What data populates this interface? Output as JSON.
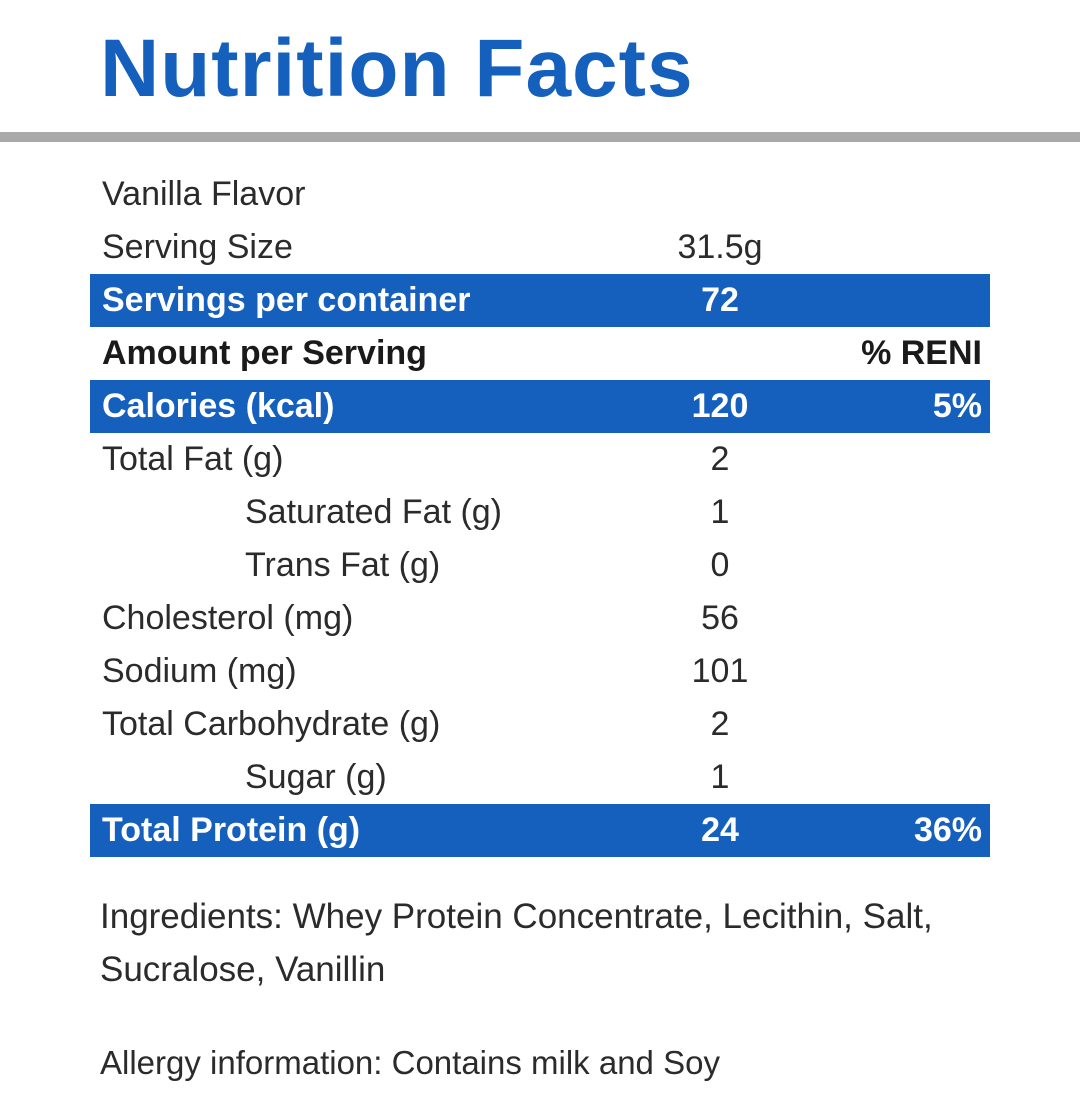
{
  "title": "Nutrition Facts",
  "colors": {
    "accent": "#1560BD",
    "divider": "#A9A9A9",
    "text": "#2B2B2B"
  },
  "rows": [
    {
      "label": "Vanilla Flavor",
      "value": "",
      "pct": ""
    },
    {
      "label": "Serving Size",
      "value": "31.5g",
      "pct": ""
    },
    {
      "label": "Servings per container",
      "value": "72",
      "pct": ""
    },
    {
      "label": "Amount per Serving",
      "value": "",
      "pct": "% RENI"
    },
    {
      "label": "Calories (kcal)",
      "value": "120",
      "pct": "5%"
    },
    {
      "label": "Total Fat (g)",
      "value": "2",
      "pct": ""
    },
    {
      "label": "Saturated Fat (g)",
      "value": "1",
      "pct": ""
    },
    {
      "label": "Trans Fat (g)",
      "value": "0",
      "pct": ""
    },
    {
      "label": "Cholesterol (mg)",
      "value": "56",
      "pct": ""
    },
    {
      "label": "Sodium (mg)",
      "value": "101",
      "pct": ""
    },
    {
      "label": "Total Carbohydrate (g)",
      "value": "2",
      "pct": ""
    },
    {
      "label": "Sugar (g)",
      "value": "1",
      "pct": ""
    },
    {
      "label": "Total Protein (g)",
      "value": "24",
      "pct": "36%"
    }
  ],
  "ingredients": "Ingredients: Whey Protein Concentrate, Lecithin, Salt, Sucralose, Vanillin",
  "allergy": "Allergy information: Contains milk and Soy"
}
